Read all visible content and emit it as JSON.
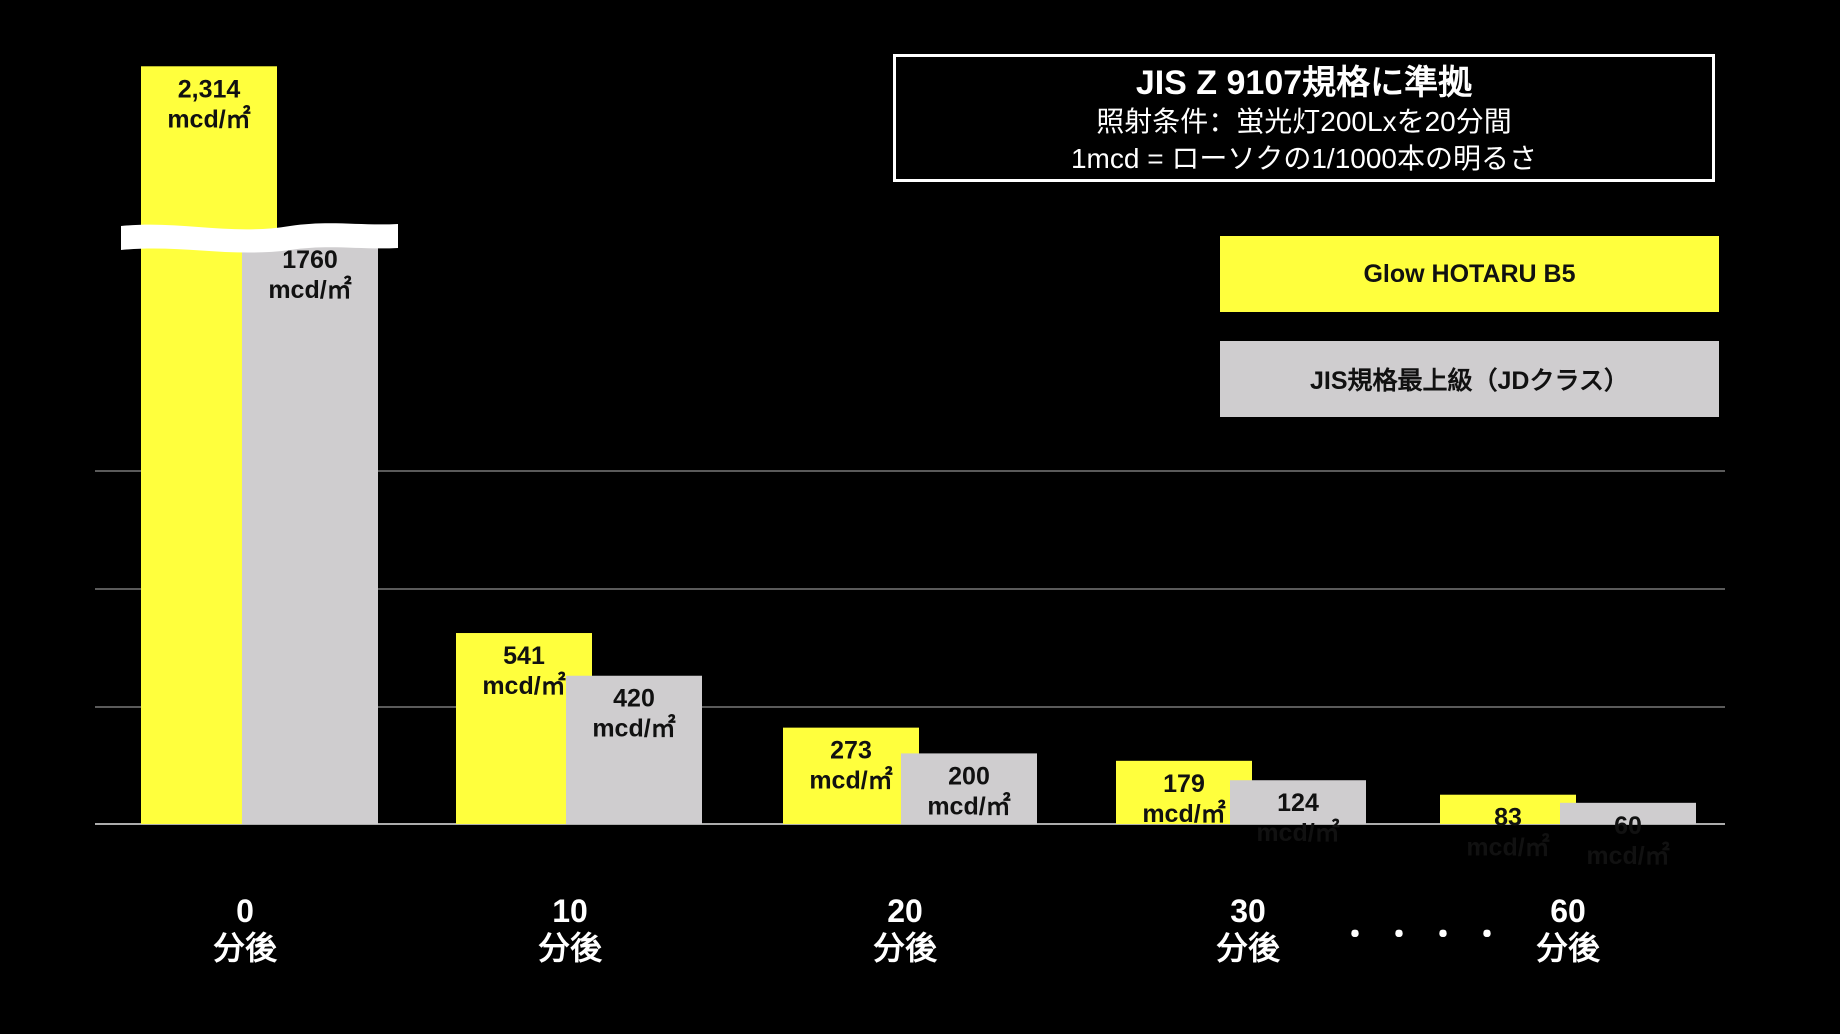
{
  "chart_data": {
    "type": "bar",
    "categories": [
      "0\n分後",
      "10\n分後",
      "20\n分後",
      "30\n分後",
      "60\n分後"
    ],
    "category_numbers": [
      "0",
      "10",
      "20",
      "30",
      "60"
    ],
    "category_unit": "分後",
    "series": [
      {
        "name": "Glow HOTARU B5",
        "color": "#ffff3d",
        "values": [
          2314,
          541,
          273,
          179,
          83
        ],
        "labels": [
          "2,314",
          "541",
          "273",
          "179",
          "83"
        ]
      },
      {
        "name": "JIS規格最上級（JDクラス）",
        "color": "#cfcdcf",
        "values": [
          1760,
          420,
          200,
          124,
          60
        ],
        "labels": [
          "1760",
          "420",
          "200",
          "124",
          "60"
        ]
      }
    ],
    "value_unit": "mcd/㎡",
    "axis_break": true,
    "grid": true,
    "ellipsis": "・・・・"
  },
  "info_box": {
    "title": "JIS Z 9107規格に準拠",
    "line1": "照射条件：蛍光灯200Lxを20分間",
    "line2": "1mcd = ローソクの1/1000本の明るさ"
  },
  "legend": {
    "item1": "Glow HOTARU B5",
    "item2": "JIS規格最上級（JDクラス）"
  }
}
